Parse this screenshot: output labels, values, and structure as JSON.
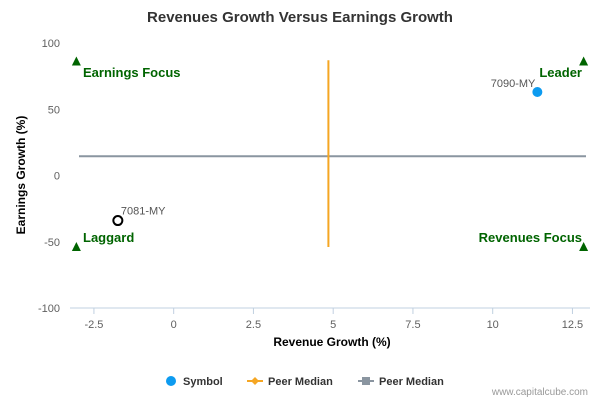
{
  "chart_data": {
    "type": "scatter",
    "title": "Revenues Growth Versus Earnings Growth",
    "xlabel": "Revenue Growth (%)",
    "ylabel": "Earnings Growth (%)",
    "xlim": [
      -3.25,
      13.05
    ],
    "ylim": [
      -100,
      100
    ],
    "xticks": [
      -2.5,
      0,
      2.5,
      5,
      7.5,
      10,
      12.5
    ],
    "xtick_labels": [
      "-2.5",
      "0",
      "2.5",
      "5",
      "7.5",
      "10",
      "12.5"
    ],
    "yticks": [
      100,
      50,
      0,
      -50,
      -100
    ],
    "ytick_labels": [
      "100",
      "50",
      "0",
      "-50",
      "-100"
    ],
    "grid": false,
    "legend_position": "bottom-center",
    "series": [
      {
        "name": "Symbol",
        "color": "#0d9bf0",
        "points": [
          {
            "label": "7090-MY",
            "x": 11.4,
            "y": 63
          }
        ]
      },
      {
        "name": "",
        "color": "#000000",
        "hollow": true,
        "points": [
          {
            "label": "7081-MY",
            "x": -1.75,
            "y": -34
          }
        ]
      }
    ],
    "peer_median_x": {
      "name": "Peer Median",
      "color": "#f5a623",
      "value": 4.85,
      "y_range": [
        -54,
        87
      ]
    },
    "peer_median_y": {
      "name": "Peer Median",
      "color": "#8a95a0",
      "value": 14.5
    },
    "quadrants": {
      "top_left": "Earnings Focus",
      "top_right": "Leader",
      "bottom_left": "Laggard",
      "bottom_right": "Revenues Focus"
    },
    "quadrant_color": "#006400",
    "marker_positions": [
      {
        "x": -3.05,
        "y": 86
      },
      {
        "x": 12.85,
        "y": 86
      },
      {
        "x": -3.05,
        "y": -54
      },
      {
        "x": 12.85,
        "y": -54
      }
    ]
  },
  "legend": {
    "items": [
      {
        "label": "Symbol",
        "color": "#0d9bf0",
        "kind": "dot"
      },
      {
        "label": "Peer Median",
        "color": "#f5a623",
        "kind": "line-diamond"
      },
      {
        "label": "Peer Median",
        "color": "#8a95a0",
        "kind": "line-square"
      }
    ]
  },
  "credit": "www.capitalcube.com"
}
